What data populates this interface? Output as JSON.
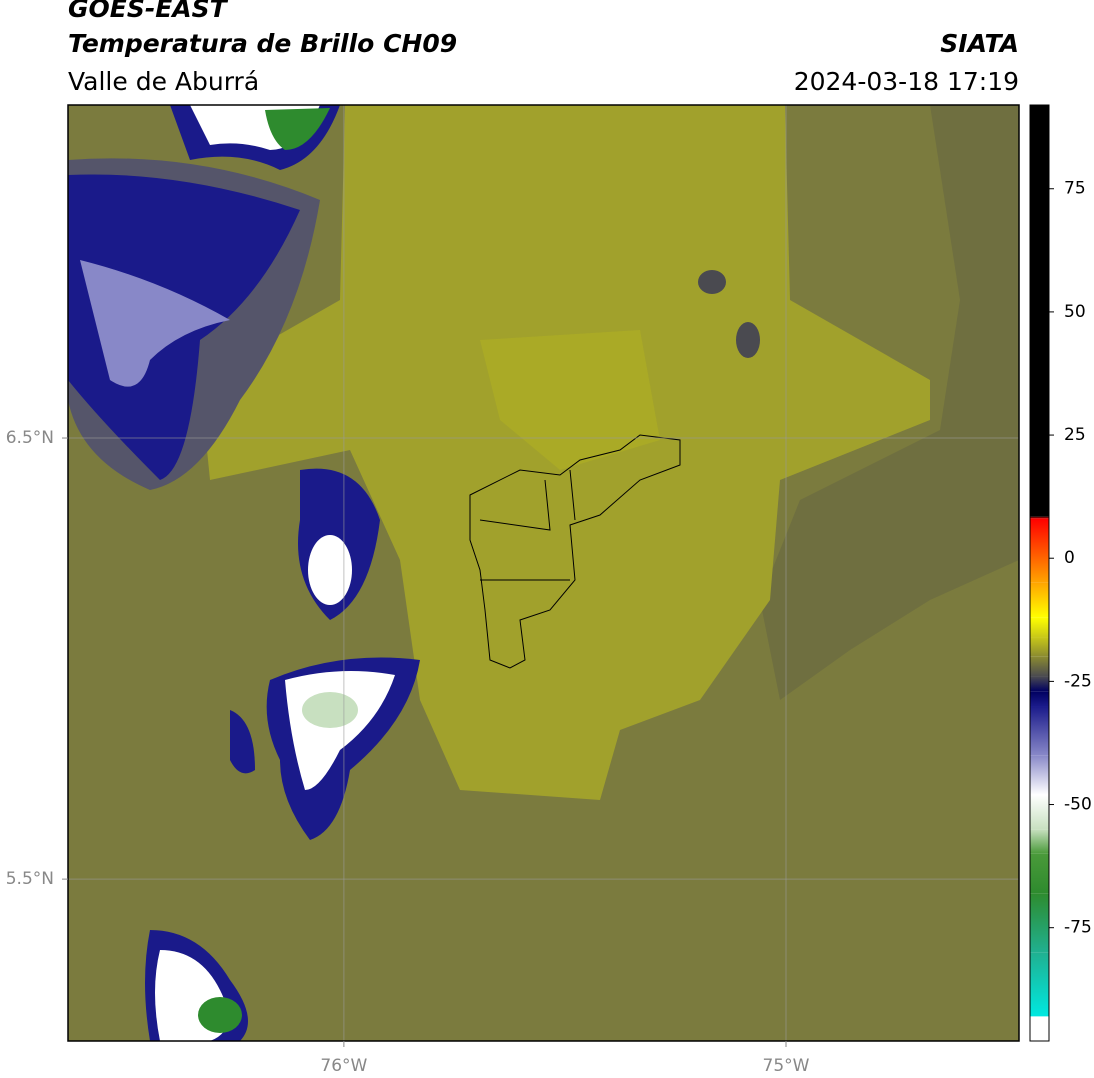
{
  "header": {
    "title": "GOES-EAST",
    "subtitle": "Temperatura de Brillo CH09",
    "region": "Valle de Aburrá",
    "source": "SIATA",
    "datetime": "2024-03-18 17:19"
  },
  "map": {
    "xlim": [
      -76.624,
      -74.473
    ],
    "ylim": [
      5.133,
      7.255
    ],
    "xticks": [
      {
        "value": -76,
        "label": "76°W"
      },
      {
        "value": -75,
        "label": "75°W"
      }
    ],
    "yticks": [
      {
        "value": 6.5,
        "label": "6.5°N"
      },
      {
        "value": 5.5,
        "label": "5.5°N"
      }
    ],
    "grid": true
  },
  "colorbar": {
    "clim": [
      -98,
      92
    ],
    "ticks": [
      -75,
      -50,
      -25,
      0,
      25,
      50,
      75
    ],
    "under_color": "#ffffff",
    "stops": [
      {
        "value": -93,
        "color": "#00e8e0"
      },
      {
        "value": -80,
        "color": "#20b090"
      },
      {
        "value": -68,
        "color": "#2e8b2e"
      },
      {
        "value": -60,
        "color": "#4a9a3a"
      },
      {
        "value": -55,
        "color": "#c8e0c0"
      },
      {
        "value": -48,
        "color": "#ffffff"
      },
      {
        "value": -40,
        "color": "#8888c8"
      },
      {
        "value": -30,
        "color": "#1a1a8a"
      },
      {
        "value": -27,
        "color": "#000060"
      },
      {
        "value": -24,
        "color": "#4a4a50"
      },
      {
        "value": -20,
        "color": "#8a8a30"
      },
      {
        "value": -16,
        "color": "#c8c818"
      },
      {
        "value": -12,
        "color": "#ffff00"
      },
      {
        "value": -5,
        "color": "#ffa500"
      },
      {
        "value": 8,
        "color": "#ff0000"
      },
      {
        "value": 8.5,
        "color": "#000000"
      },
      {
        "value": 92,
        "color": "#000000"
      }
    ]
  }
}
